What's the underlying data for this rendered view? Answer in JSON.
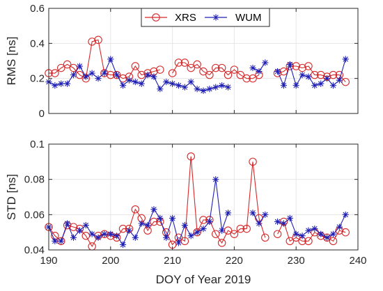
{
  "colors": {
    "xrs": "#d62728",
    "wum": "#1f1fb4",
    "grid": "#e6e6e6",
    "axis": "#262626"
  },
  "legend": {
    "labels": [
      "XRS",
      "WUM"
    ]
  },
  "chart_data": [
    {
      "type": "line",
      "title": "",
      "xlabel": "",
      "ylabel": "RMS [ns]",
      "xlim": [
        190,
        240
      ],
      "ylim": [
        0,
        0.6
      ],
      "xticks": [
        190,
        200,
        210,
        220,
        230,
        240
      ],
      "yticks": [
        0,
        0.2,
        0.4,
        0.6
      ],
      "ytick_labels": [
        "0",
        "0.2",
        "0.4",
        "0.6"
      ],
      "show_xtick_labels": false,
      "grid": true,
      "legend_position": "top-center",
      "series": [
        {
          "name": "XRS",
          "marker": "circle",
          "x": [
            190,
            191,
            192,
            193,
            194,
            195,
            196,
            197,
            198,
            199,
            200,
            201,
            202,
            203,
            204,
            205,
            206,
            207,
            208,
            null,
            210,
            211,
            212,
            213,
            214,
            215,
            216,
            217,
            218,
            219,
            220,
            221,
            222,
            223,
            224,
            null,
            227,
            228,
            229,
            230,
            231,
            232,
            233,
            234,
            235,
            236,
            237,
            238
          ],
          "y": [
            0.23,
            0.23,
            0.26,
            0.28,
            0.26,
            0.22,
            0.2,
            0.41,
            0.42,
            0.23,
            0.22,
            0.22,
            0.2,
            0.21,
            0.27,
            0.22,
            0.23,
            0.24,
            0.25,
            null,
            0.23,
            0.29,
            0.29,
            0.26,
            0.28,
            0.24,
            0.22,
            0.26,
            0.26,
            0.22,
            0.25,
            0.22,
            0.2,
            0.2,
            0.22,
            null,
            0.23,
            0.24,
            0.27,
            0.27,
            0.26,
            0.27,
            0.22,
            0.22,
            0.21,
            0.22,
            0.22,
            0.18
          ]
        },
        {
          "name": "WUM",
          "marker": "asterisk",
          "x": [
            190,
            191,
            192,
            193,
            194,
            195,
            196,
            197,
            198,
            199,
            200,
            201,
            202,
            203,
            204,
            205,
            206,
            207,
            208,
            209,
            210,
            211,
            212,
            213,
            214,
            215,
            216,
            217,
            218,
            219,
            null,
            223,
            224,
            225,
            null,
            227,
            228,
            229,
            230,
            231,
            232,
            233,
            234,
            235,
            236,
            237,
            238
          ],
          "y": [
            0.18,
            0.16,
            0.17,
            0.17,
            0.22,
            0.27,
            0.21,
            0.23,
            0.2,
            0.23,
            0.31,
            0.22,
            0.16,
            0.19,
            0.18,
            0.17,
            0.22,
            0.21,
            0.14,
            0.18,
            0.17,
            0.16,
            0.15,
            0.18,
            0.14,
            0.13,
            0.14,
            0.15,
            0.16,
            0.15,
            null,
            0.26,
            0.24,
            0.29,
            null,
            0.24,
            0.16,
            0.28,
            0.16,
            0.22,
            0.21,
            0.16,
            0.17,
            0.2,
            0.16,
            0.19,
            0.31
          ]
        }
      ]
    },
    {
      "type": "line",
      "title": "",
      "xlabel": "DOY of Year 2019",
      "ylabel": "STD [ns]",
      "xlim": [
        190,
        240
      ],
      "ylim": [
        0.04,
        0.1
      ],
      "xticks": [
        190,
        200,
        210,
        220,
        230,
        240
      ],
      "xtick_labels": [
        "190",
        "200",
        "210",
        "220",
        "230",
        "240"
      ],
      "yticks": [
        0.04,
        0.06,
        0.08,
        0.1
      ],
      "ytick_labels": [
        "0.04",
        "0.06",
        "0.08",
        "0.1"
      ],
      "show_xtick_labels": true,
      "grid": true,
      "series": [
        {
          "name": "XRS",
          "marker": "circle",
          "x": [
            190,
            191,
            192,
            193,
            194,
            195,
            196,
            197,
            198,
            199,
            200,
            201,
            202,
            203,
            204,
            205,
            206,
            207,
            208,
            209,
            210,
            211,
            212,
            213,
            214,
            215,
            216,
            217,
            218,
            219,
            220,
            221,
            222,
            223,
            224,
            225,
            null,
            227,
            228,
            229,
            230,
            231,
            232,
            233,
            234,
            235,
            236,
            237,
            238
          ],
          "y": [
            0.053,
            0.048,
            0.045,
            0.054,
            0.053,
            0.052,
            0.048,
            0.042,
            0.048,
            0.049,
            0.048,
            0.047,
            0.052,
            0.052,
            0.063,
            0.058,
            0.051,
            0.056,
            0.056,
            0.05,
            0.043,
            0.047,
            0.045,
            0.093,
            0.05,
            0.057,
            0.057,
            0.049,
            0.044,
            0.051,
            0.049,
            0.052,
            0.052,
            0.09,
            0.058,
            0.047,
            null,
            0.049,
            0.056,
            0.045,
            0.047,
            0.045,
            0.045,
            0.05,
            0.048,
            0.047,
            0.045,
            0.051,
            0.05
          ]
        },
        {
          "name": "WUM",
          "marker": "asterisk",
          "x": [
            190,
            191,
            192,
            193,
            194,
            195,
            196,
            197,
            198,
            199,
            200,
            201,
            202,
            203,
            204,
            205,
            206,
            207,
            208,
            209,
            210,
            211,
            212,
            213,
            214,
            215,
            216,
            217,
            218,
            219,
            null,
            223,
            224,
            225,
            null,
            227,
            228,
            229,
            230,
            231,
            232,
            233,
            234,
            235,
            236,
            237,
            238
          ],
          "y": [
            0.053,
            0.045,
            0.045,
            0.055,
            0.047,
            0.051,
            0.054,
            0.049,
            0.047,
            0.049,
            0.049,
            0.048,
            0.043,
            0.051,
            0.047,
            0.055,
            0.054,
            0.063,
            0.058,
            0.047,
            0.058,
            0.044,
            0.054,
            0.048,
            0.05,
            0.052,
            0.056,
            0.08,
            0.051,
            0.061,
            null,
            0.061,
            0.055,
            0.06,
            null,
            0.056,
            0.055,
            0.058,
            0.049,
            0.048,
            0.051,
            0.052,
            0.049,
            0.047,
            0.049,
            0.053,
            0.06
          ]
        }
      ]
    }
  ]
}
